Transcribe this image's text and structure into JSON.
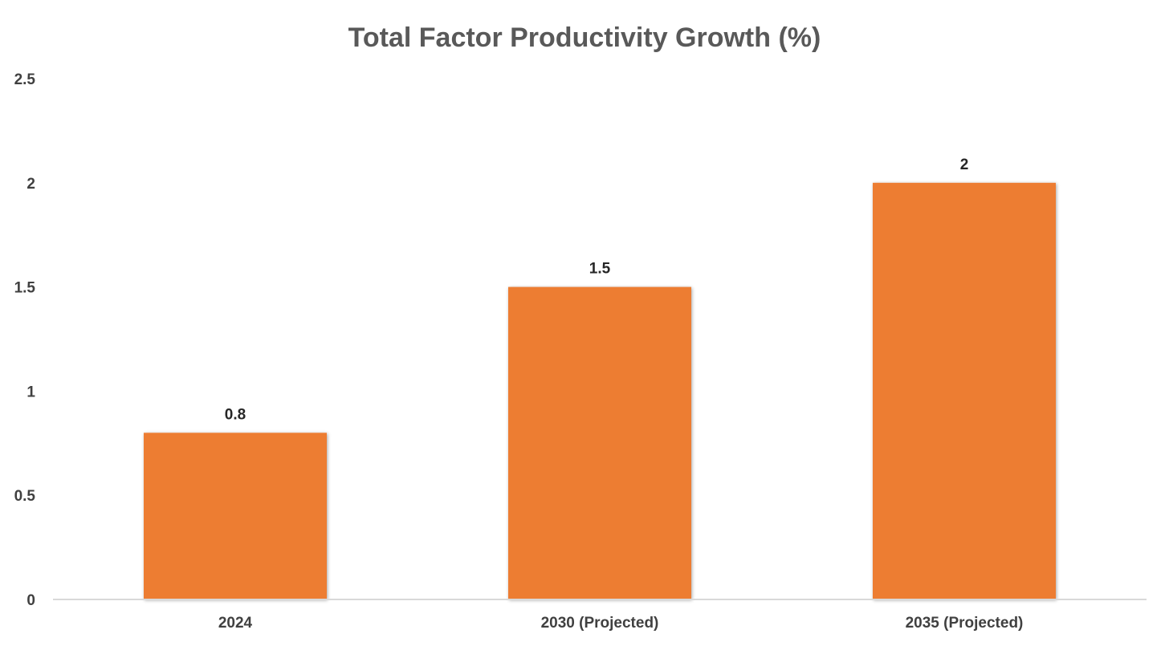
{
  "chart_data": {
    "type": "bar",
    "title": "Total Factor Productivity Growth (%)",
    "xlabel": "",
    "ylabel": "",
    "categories": [
      "2024",
      "2030 (Projected)",
      "2035 (Projected)"
    ],
    "values": [
      0.8,
      1.5,
      2
    ],
    "data_labels": [
      "0.8",
      "1.5",
      "2"
    ],
    "y_ticks": [
      "0",
      "0.5",
      "1",
      "1.5",
      "2",
      "2.5"
    ],
    "ylim": [
      0,
      2.5
    ],
    "grid": false,
    "legend": "none",
    "bar_color": "#ED7D31",
    "axis_color": "#D9D9D9"
  }
}
